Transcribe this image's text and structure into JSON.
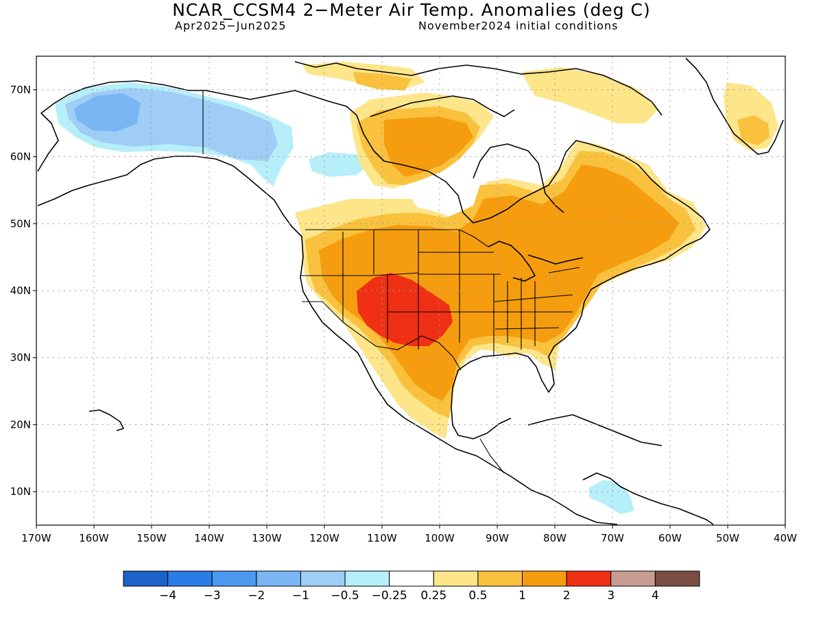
{
  "title": "NCAR_CCSM4 2−Meter Air Temp. Anomalies (deg C)",
  "period": "Apr2025−Jun2025",
  "init": "November2024 initial conditions",
  "map": {
    "lon_range": [
      -170,
      -40
    ],
    "lat_range": [
      5,
      75
    ],
    "x_ticks": [
      "170W",
      "160W",
      "150W",
      "140W",
      "130W",
      "120W",
      "110W",
      "100W",
      "90W",
      "80W",
      "70W",
      "60W",
      "50W",
      "40W"
    ],
    "y_ticks": [
      "10N",
      "20N",
      "30N",
      "40N",
      "50N",
      "60N",
      "70N"
    ],
    "grid": "dotted"
  },
  "colorbar": {
    "colors": [
      "#1c62c8",
      "#2b7de6",
      "#4b99ef",
      "#79b6f3",
      "#9fcdf5",
      "#b6eefa",
      "#ffffff",
      "#fde58a",
      "#f9c13d",
      "#f59d0e",
      "#f03014",
      "#c79d91",
      "#7a4e42"
    ],
    "labels": [
      "−4",
      "−3",
      "−2",
      "−1",
      "−0.5",
      "−0.25",
      "0.25",
      "0.5",
      "1",
      "2",
      "3",
      "4"
    ]
  }
}
